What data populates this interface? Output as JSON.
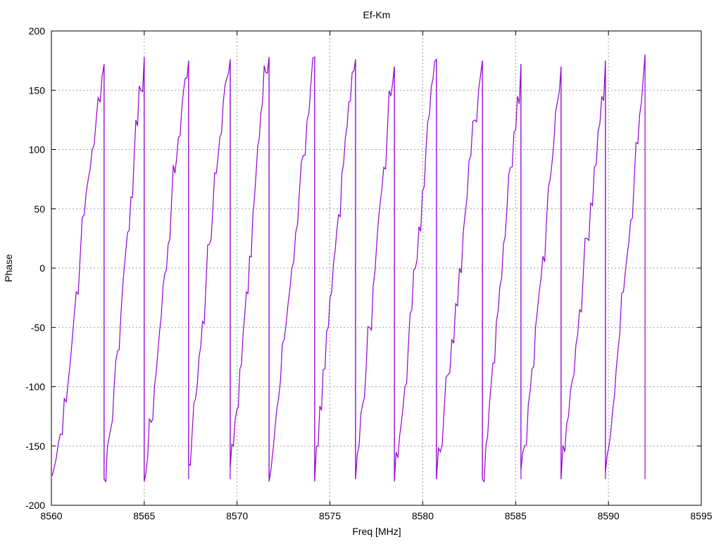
{
  "chart_data": {
    "type": "line",
    "title": "Ef-Km",
    "xlabel": "Freq [MHz]",
    "ylabel": "Phase",
    "xlim": [
      8560,
      8595
    ],
    "ylim": [
      -200,
      200
    ],
    "xticks": [
      8560,
      8565,
      8570,
      8575,
      8580,
      8585,
      8590,
      8595
    ],
    "yticks": [
      -200,
      -150,
      -100,
      -50,
      0,
      50,
      100,
      150,
      200
    ],
    "grid": true,
    "legend": "none",
    "color": "#9400D3",
    "series": [
      {
        "name": "Ef-Km",
        "cycles": [
          {
            "start": 8560.05,
            "end": 8562.84,
            "phase": [
              -175,
              -160,
              -140,
              -110,
              -95,
              -60,
              -20,
              10,
              45,
              75,
              100,
              125,
              140,
              172
            ]
          },
          {
            "start": 8562.84,
            "end": 8565.0,
            "phase": [
              -178,
              -150,
              -135,
              -100,
              -70,
              -40,
              0,
              30,
              60,
              95,
              120,
              150,
              178
            ]
          },
          {
            "start": 8565.0,
            "end": 8567.39,
            "phase": [
              -180,
              -160,
              -130,
              -100,
              -70,
              -40,
              -5,
              20,
              55,
              80,
              110,
              135,
              160,
              175
            ]
          },
          {
            "start": 8567.39,
            "end": 8569.63,
            "phase": [
              -165,
              -140,
              -110,
              -75,
              -45,
              -15,
              20,
              50,
              80,
              110,
              140,
              160,
              176
            ]
          },
          {
            "start": 8569.63,
            "end": 8571.72,
            "phase": [
              -168,
              -150,
              -120,
              -85,
              -55,
              -20,
              10,
              45,
              80,
              110,
              140,
              165,
              178
            ]
          },
          {
            "start": 8571.72,
            "end": 8574.18,
            "phase": [
              -180,
              -155,
              -120,
              -95,
              -60,
              -30,
              0,
              30,
              65,
              95,
              125,
              155,
              178
            ]
          },
          {
            "start": 8574.18,
            "end": 8576.38,
            "phase": [
              -180,
              -150,
              -120,
              -85,
              -50,
              -20,
              15,
              45,
              80,
              110,
              140,
              165,
              176
            ]
          },
          {
            "start": 8576.38,
            "end": 8578.47,
            "phase": [
              -178,
              -150,
              -115,
              -85,
              -50,
              -15,
              20,
              55,
              85,
              115,
              145,
              170
            ]
          },
          {
            "start": 8578.47,
            "end": 8580.74,
            "phase": [
              -180,
              -160,
              -130,
              -100,
              -65,
              -35,
              0,
              35,
              65,
              100,
              130,
              160,
              176
            ]
          },
          {
            "start": 8580.74,
            "end": 8583.21,
            "phase": [
              -178,
              -155,
              -120,
              -90,
              -60,
              -30,
              0,
              30,
              60,
              95,
              125,
              150,
              175
            ]
          },
          {
            "start": 8583.21,
            "end": 8585.29,
            "phase": [
              -178,
              -150,
              -115,
              -80,
              -45,
              -15,
              20,
              50,
              85,
              115,
              145,
              172
            ]
          },
          {
            "start": 8585.29,
            "end": 8587.45,
            "phase": [
              -170,
              -150,
              -115,
              -85,
              -50,
              -20,
              10,
              40,
              75,
              105,
              140,
              170
            ]
          },
          {
            "start": 8587.45,
            "end": 8589.84,
            "phase": [
              -178,
              -155,
              -125,
              -95,
              -65,
              -35,
              -5,
              25,
              55,
              85,
              115,
              145,
              175
            ]
          },
          {
            "start": 8589.84,
            "end": 8591.97,
            "phase": [
              -172,
              -150,
              -120,
              -85,
              -55,
              -20,
              10,
              40,
              75,
              105,
              140,
              180
            ]
          }
        ]
      }
    ]
  }
}
